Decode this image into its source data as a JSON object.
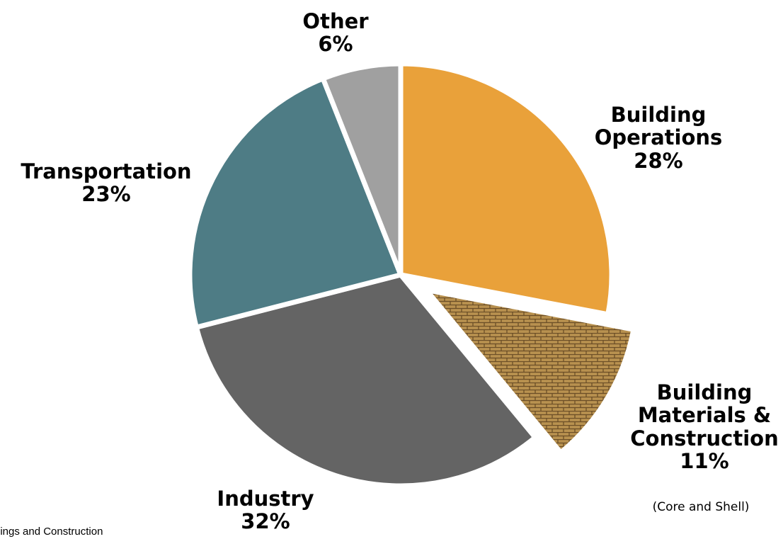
{
  "chart_data": {
    "type": "pie",
    "slices": [
      {
        "label_lines": [
          "Building",
          "Operations"
        ],
        "value": 28,
        "value_label": "28%",
        "color": "#E9A13A",
        "pattern": "none",
        "exploded": false,
        "note": ""
      },
      {
        "label_lines": [
          "Building",
          "Materials &",
          "Construction"
        ],
        "value": 11,
        "value_label": "11%",
        "color": "#9A7A4A",
        "pattern": "brick",
        "exploded": true,
        "note": "(Core and Shell)"
      },
      {
        "label_lines": [
          "Industry"
        ],
        "value": 32,
        "value_label": "32%",
        "color": "#646464",
        "pattern": "none",
        "exploded": false,
        "note": ""
      },
      {
        "label_lines": [
          "Transportation"
        ],
        "value": 23,
        "value_label": "23%",
        "color": "#4E7C85",
        "pattern": "none",
        "exploded": false,
        "note": ""
      },
      {
        "label_lines": [
          "Other"
        ],
        "value": 6,
        "value_label": "6%",
        "color": "#A0A0A0",
        "pattern": "none",
        "exploded": false,
        "note": ""
      }
    ],
    "start_direction": "12 o'clock",
    "order": "clockwise",
    "legend": "none"
  },
  "source_text": "dings and Construction"
}
